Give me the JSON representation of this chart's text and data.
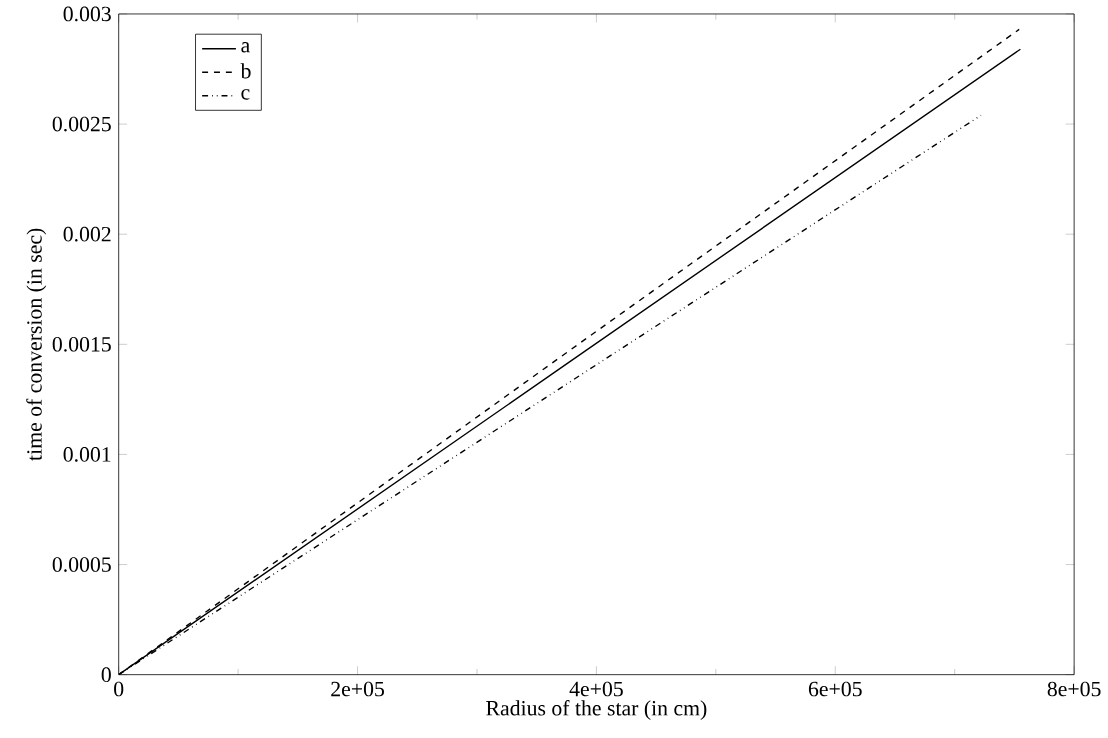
{
  "chart_data": {
    "type": "line",
    "xlabel": "Radius of the star (in cm)",
    "ylabel": "time of conversion (in sec)",
    "xlim": [
      0,
      800000
    ],
    "ylim": [
      0,
      0.003
    ],
    "xticks": [
      {
        "value": 0,
        "label": "0"
      },
      {
        "value": 200000,
        "label": "2e+05"
      },
      {
        "value": 400000,
        "label": "4e+05"
      },
      {
        "value": 600000,
        "label": "6e+05"
      },
      {
        "value": 800000,
        "label": "8e+05"
      }
    ],
    "yticks": [
      0,
      0.0005,
      0.001,
      0.0015,
      0.002,
      0.0025,
      0.003
    ],
    "legend": "top left",
    "grid": false,
    "series": [
      {
        "name": "a",
        "color": "#000000",
        "line_style": "solid",
        "x": [
          0,
          377500,
          755000
        ],
        "values": [
          0,
          0.00142,
          0.00284
        ]
      },
      {
        "name": "b",
        "color": "#000000",
        "line_style": "dashed",
        "x": [
          0,
          377000,
          754000
        ],
        "values": [
          0,
          0.00147,
          0.00293
        ]
      },
      {
        "name": "c",
        "color": "#000000",
        "line_style": "dashdotdotted",
        "x": [
          0,
          361000,
          722000
        ],
        "values": [
          0,
          0.00127,
          0.00254
        ]
      }
    ]
  }
}
